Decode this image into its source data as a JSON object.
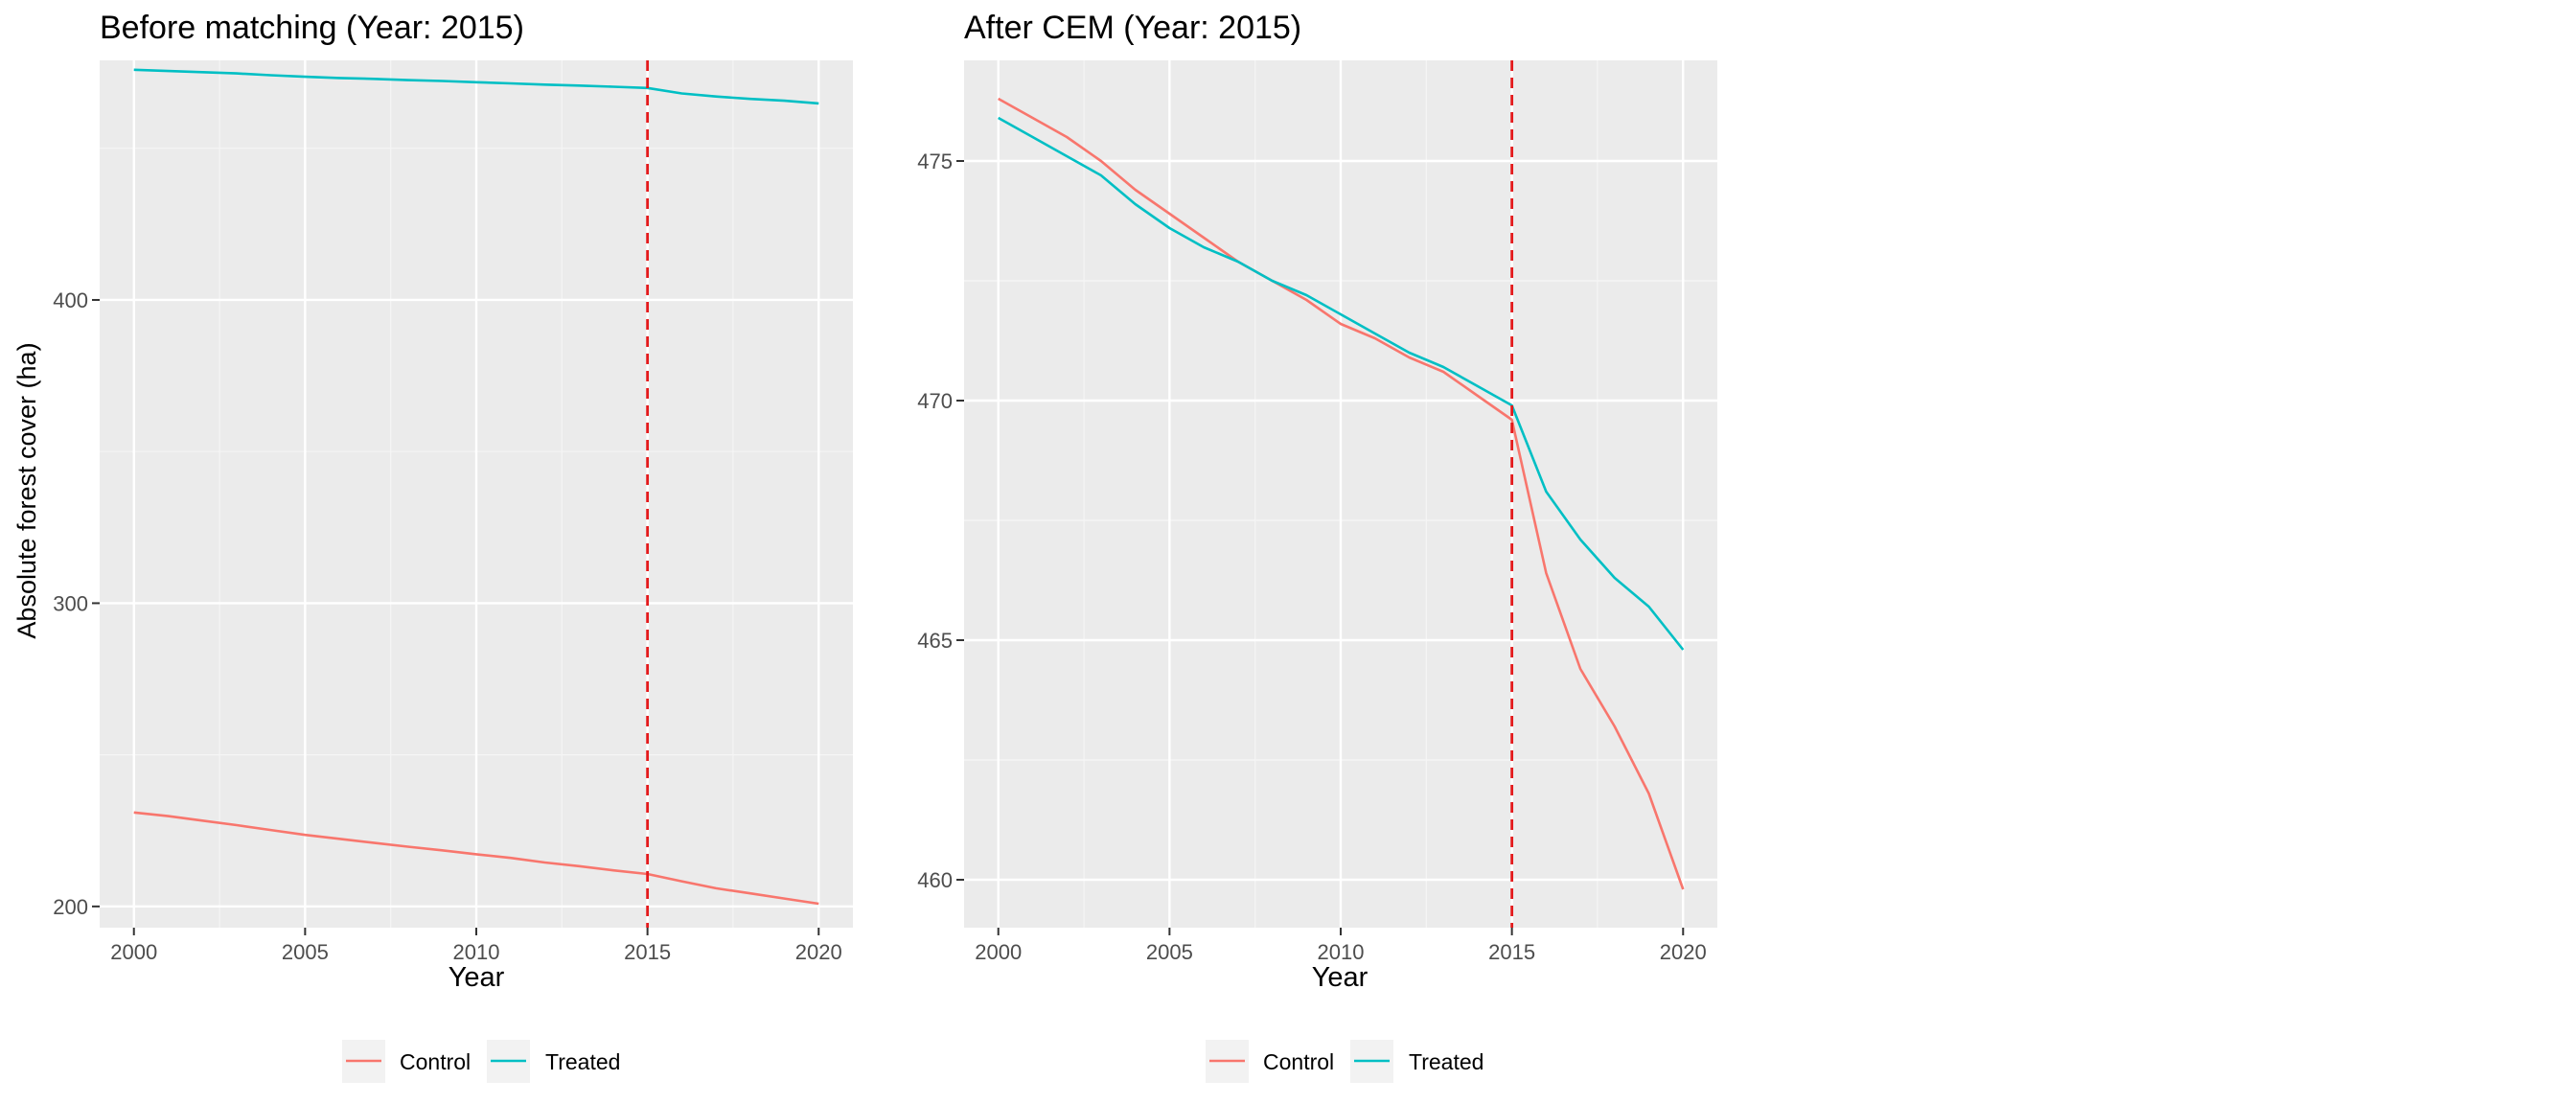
{
  "colors": {
    "panel_bg": "#EBEBEB",
    "grid_major": "#FFFFFF",
    "grid_minor": "#F5F5F5",
    "control": "#F8766D",
    "treated": "#00BFC4",
    "vline": "#E41A1C",
    "tick_text": "#4D4D4D",
    "title_text": "#000000"
  },
  "chart_data": [
    {
      "type": "line",
      "title": "Before matching (Year: 2015)",
      "xlabel": "Year",
      "ylabel": "Absolute forest cover (ha)",
      "xlim": [
        1999,
        2021
      ],
      "ylim": [
        193,
        479
      ],
      "x_ticks": [
        2000,
        2005,
        2010,
        2015,
        2020
      ],
      "y_ticks": [
        200,
        300,
        400
      ],
      "vline": {
        "x": 2015,
        "style": "dashed"
      },
      "grid": true,
      "legend": {
        "position": "bottom",
        "entries": [
          "Control",
          "Treated"
        ]
      },
      "x": [
        2000,
        2001,
        2002,
        2003,
        2004,
        2005,
        2006,
        2007,
        2008,
        2009,
        2010,
        2011,
        2012,
        2013,
        2014,
        2015,
        2016,
        2017,
        2018,
        2019,
        2020
      ],
      "series": [
        {
          "name": "Control",
          "color_key": "control",
          "values": [
            231.0,
            229.8,
            228.3,
            226.8,
            225.2,
            223.6,
            222.3,
            221.0,
            219.7,
            218.5,
            217.2,
            216.0,
            214.5,
            213.3,
            211.9,
            210.7,
            208.3,
            206.0,
            204.3,
            202.6,
            200.9
          ]
        },
        {
          "name": "Treated",
          "color_key": "treated",
          "values": [
            475.9,
            475.5,
            475.1,
            474.7,
            474.1,
            473.6,
            473.2,
            472.9,
            472.5,
            472.2,
            471.8,
            471.4,
            471.0,
            470.7,
            470.3,
            469.9,
            468.1,
            467.1,
            466.3,
            465.7,
            464.8
          ]
        }
      ]
    },
    {
      "type": "line",
      "title": "After CEM (Year: 2015)",
      "xlabel": "Year",
      "ylabel": "",
      "xlim": [
        1999,
        2021
      ],
      "ylim": [
        459.0,
        477.1
      ],
      "x_ticks": [
        2000,
        2005,
        2010,
        2015,
        2020
      ],
      "y_ticks": [
        460,
        465,
        470,
        475
      ],
      "vline": {
        "x": 2015,
        "style": "dashed"
      },
      "grid": true,
      "legend": {
        "position": "bottom",
        "entries": [
          "Control",
          "Treated"
        ]
      },
      "x": [
        2000,
        2001,
        2002,
        2003,
        2004,
        2005,
        2006,
        2007,
        2008,
        2009,
        2010,
        2011,
        2012,
        2013,
        2014,
        2015,
        2016,
        2017,
        2018,
        2019,
        2020
      ],
      "series": [
        {
          "name": "Control",
          "color_key": "control",
          "values": [
            476.3,
            475.9,
            475.5,
            475.0,
            474.4,
            473.9,
            473.4,
            472.9,
            472.5,
            472.1,
            471.6,
            471.3,
            470.9,
            470.6,
            470.1,
            469.6,
            466.4,
            464.4,
            463.2,
            461.8,
            459.8
          ]
        },
        {
          "name": "Treated",
          "color_key": "treated",
          "values": [
            475.9,
            475.5,
            475.1,
            474.7,
            474.1,
            473.6,
            473.2,
            472.9,
            472.5,
            472.2,
            471.8,
            471.4,
            471.0,
            470.7,
            470.3,
            469.9,
            468.1,
            467.1,
            466.3,
            465.7,
            464.8
          ]
        }
      ]
    }
  ]
}
